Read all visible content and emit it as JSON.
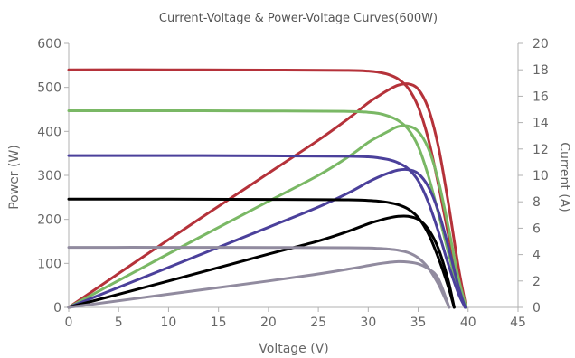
{
  "chart_data": {
    "type": "line",
    "title": "Current-Voltage & Power-Voltage Curves(600W)",
    "xlabel": "Voltage  (V)",
    "ylabel": "Power  (W)",
    "y2label": "Current  (A)",
    "xlim": [
      0,
      45
    ],
    "ylim": [
      0,
      600
    ],
    "y2lim": [
      0,
      20
    ],
    "xticks": [
      "0",
      "5",
      "10",
      "15",
      "20",
      "25",
      "30",
      "35",
      "40",
      "45"
    ],
    "yticks": [
      "0",
      "100",
      "200",
      "300",
      "400",
      "500",
      "600"
    ],
    "y2ticks": [
      "0",
      "2",
      "4",
      "6",
      "8",
      "10",
      "12",
      "14",
      "16",
      "18",
      "20"
    ],
    "grid": false,
    "series": [
      {
        "axis": "current",
        "color": "#b5323a",
        "x": [
          0,
          10,
          20,
          28,
          30,
          31,
          32,
          33,
          34,
          35,
          36,
          37,
          38,
          39,
          39.8
        ],
        "y": [
          18.0,
          18.0,
          17.98,
          17.95,
          17.9,
          17.82,
          17.65,
          17.3,
          16.6,
          15.2,
          12.8,
          9.4,
          5.6,
          2.0,
          0
        ]
      },
      {
        "axis": "power",
        "color": "#b5323a",
        "x": [
          0,
          10,
          20,
          25,
          28,
          30,
          31,
          32,
          33,
          34,
          35,
          36,
          37,
          38,
          39,
          39.8
        ],
        "y": [
          0,
          154,
          305,
          380,
          429,
          465,
          480,
          494,
          505,
          508,
          496,
          453,
          368,
          240,
          95,
          0
        ]
      },
      {
        "axis": "current",
        "color": "#7ab865",
        "x": [
          0,
          10,
          20,
          28,
          30,
          31,
          32,
          33,
          34,
          35,
          36,
          37,
          38,
          39,
          39.8
        ],
        "y": [
          14.9,
          14.9,
          14.88,
          14.85,
          14.78,
          14.7,
          14.5,
          14.15,
          13.5,
          12.2,
          10.0,
          7.2,
          4.2,
          1.4,
          0
        ]
      },
      {
        "axis": "power",
        "color": "#7ab865",
        "x": [
          0,
          10,
          20,
          25,
          28,
          30,
          31,
          32,
          33,
          34,
          35,
          36,
          37,
          38,
          39,
          39.8
        ],
        "y": [
          0,
          122,
          241,
          300,
          342,
          375,
          388,
          400,
          411,
          412,
          400,
          362,
          290,
          185,
          70,
          0
        ]
      },
      {
        "axis": "current",
        "color": "#4b409b",
        "x": [
          0,
          10,
          20,
          28,
          30,
          31,
          32,
          33,
          34,
          35,
          36,
          37,
          38,
          39,
          39.7
        ],
        "y": [
          11.5,
          11.5,
          11.48,
          11.45,
          11.4,
          11.33,
          11.2,
          10.95,
          10.5,
          9.6,
          8.0,
          5.8,
          3.3,
          1.1,
          0
        ]
      },
      {
        "axis": "power",
        "color": "#4b409b",
        "x": [
          0,
          10,
          20,
          25,
          28,
          30,
          31,
          32,
          33,
          34,
          35,
          36,
          37,
          38,
          39,
          39.7
        ],
        "y": [
          0,
          91,
          182,
          228,
          260,
          285,
          296,
          305,
          312,
          313,
          304,
          275,
          220,
          140,
          50,
          0
        ]
      },
      {
        "axis": "current",
        "color": "#000000",
        "x": [
          0,
          10,
          20,
          28,
          30,
          31,
          32,
          33,
          34,
          35,
          36,
          37,
          38,
          38.6
        ],
        "y": [
          8.2,
          8.2,
          8.18,
          8.15,
          8.1,
          8.05,
          7.95,
          7.78,
          7.45,
          6.8,
          5.6,
          3.8,
          1.6,
          0
        ]
      },
      {
        "axis": "power",
        "color": "#000000",
        "x": [
          0,
          10,
          20,
          25,
          28,
          30,
          31,
          32,
          33,
          34,
          35,
          36,
          37,
          38,
          38.6
        ],
        "y": [
          0,
          60,
          121,
          151,
          173,
          190,
          197,
          203,
          207,
          207,
          200,
          178,
          135,
          62,
          0
        ]
      },
      {
        "axis": "current",
        "color": "#918b9f",
        "x": [
          0,
          10,
          20,
          28,
          30,
          31,
          32,
          33,
          34,
          35,
          36,
          37,
          37.5,
          38.1
        ],
        "y": [
          4.55,
          4.55,
          4.54,
          4.52,
          4.5,
          4.47,
          4.42,
          4.33,
          4.15,
          3.75,
          3.0,
          1.8,
          1.0,
          0
        ]
      },
      {
        "axis": "power",
        "color": "#918b9f",
        "x": [
          0,
          10,
          20,
          25,
          28,
          30,
          31,
          32,
          33,
          34,
          35,
          36,
          37,
          38.1
        ],
        "y": [
          0,
          30,
          60,
          76,
          87,
          95,
          99,
          102,
          104,
          103,
          99,
          88,
          66,
          0
        ]
      }
    ]
  }
}
